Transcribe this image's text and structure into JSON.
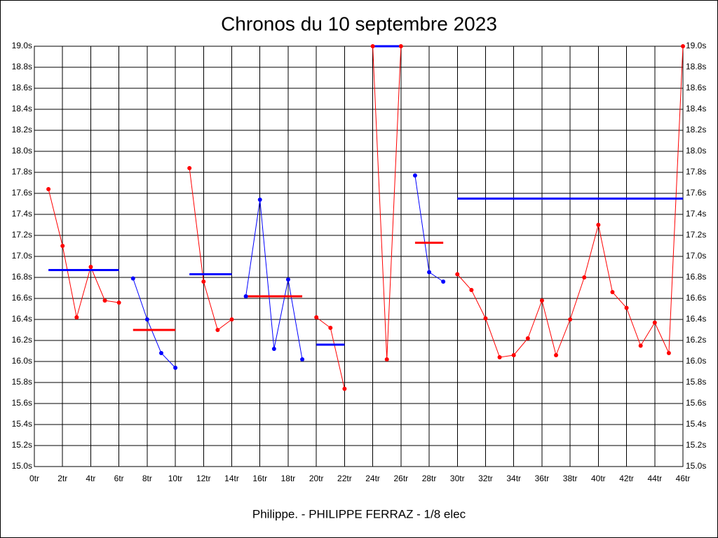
{
  "chart_data": {
    "type": "line",
    "title": "Chronos du 10 septembre 2023",
    "subtitle": "Philippe. - PHILIPPE FERRAZ - 1/8 elec",
    "xlim": [
      0,
      46
    ],
    "ylim": [
      15.0,
      19.0
    ],
    "grid": true,
    "xticks": [
      {
        "value": 0,
        "label": "0tr"
      },
      {
        "value": 2,
        "label": "2tr"
      },
      {
        "value": 4,
        "label": "4tr"
      },
      {
        "value": 6,
        "label": "6tr"
      },
      {
        "value": 8,
        "label": "8tr"
      },
      {
        "value": 10,
        "label": "10tr"
      },
      {
        "value": 12,
        "label": "12tr"
      },
      {
        "value": 14,
        "label": "14tr"
      },
      {
        "value": 16,
        "label": "16tr"
      },
      {
        "value": 18,
        "label": "18tr"
      },
      {
        "value": 20,
        "label": "20tr"
      },
      {
        "value": 22,
        "label": "22tr"
      },
      {
        "value": 24,
        "label": "24tr"
      },
      {
        "value": 26,
        "label": "26tr"
      },
      {
        "value": 28,
        "label": "28tr"
      },
      {
        "value": 30,
        "label": "30tr"
      },
      {
        "value": 32,
        "label": "32tr"
      },
      {
        "value": 34,
        "label": "34tr"
      },
      {
        "value": 36,
        "label": "36tr"
      },
      {
        "value": 38,
        "label": "38tr"
      },
      {
        "value": 40,
        "label": "40tr"
      },
      {
        "value": 42,
        "label": "42tr"
      },
      {
        "value": 44,
        "label": "44tr"
      },
      {
        "value": 46,
        "label": "46tr"
      }
    ],
    "yticks": [
      {
        "value": 15.0,
        "label": "15.0s"
      },
      {
        "value": 15.2,
        "label": "15.2s"
      },
      {
        "value": 15.4,
        "label": "15.4s"
      },
      {
        "value": 15.6,
        "label": "15.6s"
      },
      {
        "value": 15.8,
        "label": "15.8s"
      },
      {
        "value": 16.0,
        "label": "16.0s"
      },
      {
        "value": 16.2,
        "label": "16.2s"
      },
      {
        "value": 16.4,
        "label": "16.4s"
      },
      {
        "value": 16.6,
        "label": "16.6s"
      },
      {
        "value": 16.8,
        "label": "16.8s"
      },
      {
        "value": 17.0,
        "label": "17.0s"
      },
      {
        "value": 17.2,
        "label": "17.2s"
      },
      {
        "value": 17.4,
        "label": "17.4s"
      },
      {
        "value": 17.6,
        "label": "17.6s"
      },
      {
        "value": 17.8,
        "label": "17.8s"
      },
      {
        "value": 18.0,
        "label": "18.0s"
      },
      {
        "value": 18.2,
        "label": "18.2s"
      },
      {
        "value": 18.4,
        "label": "18.4s"
      },
      {
        "value": 18.6,
        "label": "18.6s"
      },
      {
        "value": 18.8,
        "label": "18.8s"
      },
      {
        "value": 19.0,
        "label": "19.0s"
      }
    ],
    "series": [
      {
        "color": "#ff0000",
        "mean_color": "#0000ff",
        "x": [
          1,
          2,
          3,
          4,
          5,
          6
        ],
        "values": [
          17.64,
          17.1,
          16.42,
          16.9,
          16.58,
          16.56
        ],
        "mean": 16.87
      },
      {
        "color": "#0000ff",
        "mean_color": "#ff0000",
        "x": [
          7,
          8,
          9,
          10
        ],
        "values": [
          16.79,
          16.4,
          16.08,
          15.94
        ],
        "mean": 16.3
      },
      {
        "color": "#ff0000",
        "mean_color": "#0000ff",
        "x": [
          11,
          12,
          13,
          14
        ],
        "values": [
          17.84,
          16.76,
          16.3,
          16.4
        ],
        "mean": 16.83
      },
      {
        "color": "#0000ff",
        "mean_color": "#ff0000",
        "x": [
          15,
          16,
          17,
          18,
          19
        ],
        "values": [
          16.62,
          17.54,
          16.12,
          16.78,
          16.02
        ],
        "mean": 16.62
      },
      {
        "color": "#ff0000",
        "mean_color": "#0000ff",
        "x": [
          20,
          21,
          22
        ],
        "values": [
          16.42,
          16.32,
          15.74
        ],
        "mean": 16.16
      },
      {
        "color": "#ff0000",
        "mean_color": "#0000ff",
        "x": [
          24,
          25,
          26
        ],
        "values": [
          19.0,
          16.02,
          19.0
        ],
        "mean": 19.0
      },
      {
        "color": "#0000ff",
        "mean_color": "#ff0000",
        "x": [
          27,
          28,
          29
        ],
        "values": [
          17.77,
          16.85,
          16.76
        ],
        "mean": 17.13
      },
      {
        "color": "#ff0000",
        "mean_color": "#0000ff",
        "x": [
          30,
          31,
          32,
          33,
          34,
          35,
          36,
          37,
          38,
          39,
          40,
          41,
          42,
          43,
          44,
          45,
          46
        ],
        "values": [
          16.83,
          16.68,
          16.41,
          16.04,
          16.06,
          16.22,
          16.58,
          16.06,
          16.4,
          16.8,
          17.3,
          16.66,
          16.51,
          16.15,
          16.37,
          16.08,
          19.0
        ],
        "mean": 17.55
      }
    ]
  }
}
